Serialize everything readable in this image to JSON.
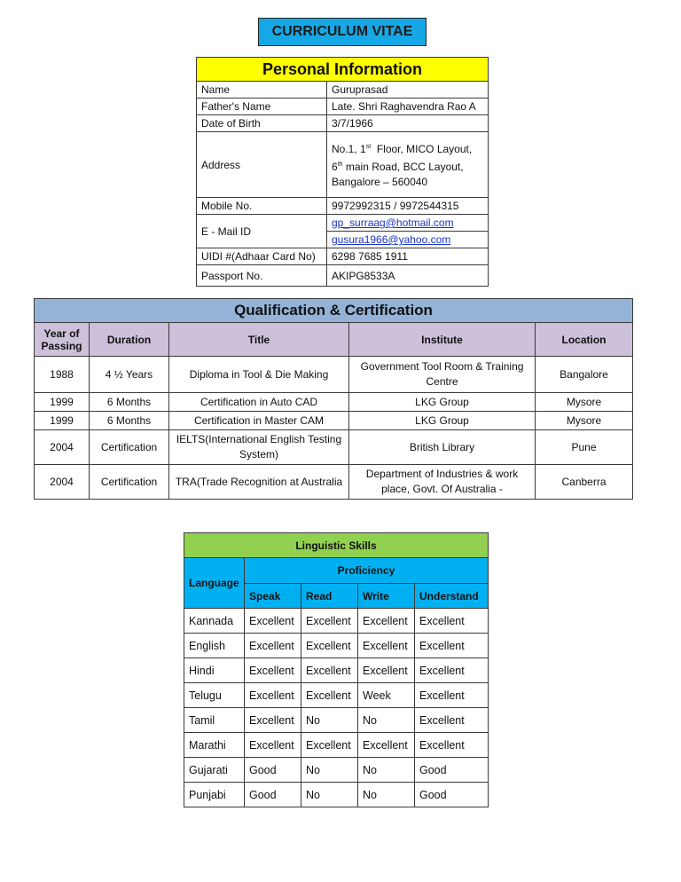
{
  "title": "CURRICULUM VITAE",
  "personal": {
    "heading": "Personal  Information",
    "rows": [
      {
        "label": "Name",
        "value": "Guruprasad"
      },
      {
        "label": "Father's Name",
        "value": "Late. Shri Raghavendra Rao A"
      },
      {
        "label": "Date of Birth",
        "value": "3/7/1966"
      },
      {
        "label": "Address",
        "value": "No.1, 1st  Floor, MICO Layout, 6th main Road, BCC Layout, Bangalore – 560040"
      },
      {
        "label": "Mobile No.",
        "value": "9972992315  / 9972544315"
      }
    ],
    "email_label": "E - Mail ID",
    "emails": [
      "gp_surraag@hotmail.com",
      "gusura1966@yahoo.com"
    ],
    "rows2": [
      {
        "label": "UIDI #(Adhaar Card No)",
        "value": "6298 7685 1911"
      },
      {
        "label": "Passport No.",
        "value": "AKIPG8533A"
      }
    ]
  },
  "qualification": {
    "heading": "Qualification  & Certification",
    "columns": [
      "Year of Passing",
      "Duration",
      "Title",
      "Institute",
      "Location"
    ],
    "rows": [
      [
        "1988",
        "4 ½ Years",
        "Diploma in Tool & Die Making",
        "Government Tool Room & Training Centre",
        "Bangalore"
      ],
      [
        "1999",
        "6 Months",
        "Certification in Auto CAD",
        "LKG Group",
        "Mysore"
      ],
      [
        "1999",
        "6 Months",
        "Certification in Master CAM",
        "LKG Group",
        "Mysore"
      ],
      [
        "2004",
        "Certification",
        "IELTS(International English Testing System)",
        "British Library",
        "Pune"
      ],
      [
        "2004",
        "Certification",
        "TRA(Trade Recognition at Australia",
        "Department of Industries & work place, Govt. Of Australia -",
        "Canberra"
      ]
    ]
  },
  "linguistic": {
    "heading": "Linguistic Skills",
    "language_label": "Language",
    "proficiency_label": "Proficiency",
    "columns": [
      "Speak",
      "Read",
      "Write",
      "Understand"
    ],
    "rows": [
      [
        "Kannada",
        "Excellent",
        "Excellent",
        "Excellent",
        "Excellent"
      ],
      [
        "English",
        "Excellent",
        "Excellent",
        "Excellent",
        "Excellent"
      ],
      [
        "Hindi",
        "Excellent",
        "Excellent",
        "Excellent",
        "Excellent"
      ],
      [
        "Telugu",
        "Excellent",
        "Excellent",
        "Week",
        "Excellent"
      ],
      [
        "Tamil",
        "Excellent",
        "No",
        "No",
        "Excellent"
      ],
      [
        "Marathi",
        "Excellent",
        "Excellent",
        "Excellent",
        "Excellent"
      ],
      [
        "Gujarati",
        "Good",
        "No",
        "No",
        "Good"
      ],
      [
        "Punjabi",
        "Good",
        "No",
        "No",
        "Good"
      ]
    ]
  },
  "colors": {
    "title_bg": "#16a8e6",
    "personal_header": "#ffff00",
    "qual_header": "#95b3d7",
    "qual_colheader": "#ccc0da",
    "ling_header": "#92d050",
    "ling_subheader": "#00b0f0",
    "link": "#1a33c8"
  }
}
